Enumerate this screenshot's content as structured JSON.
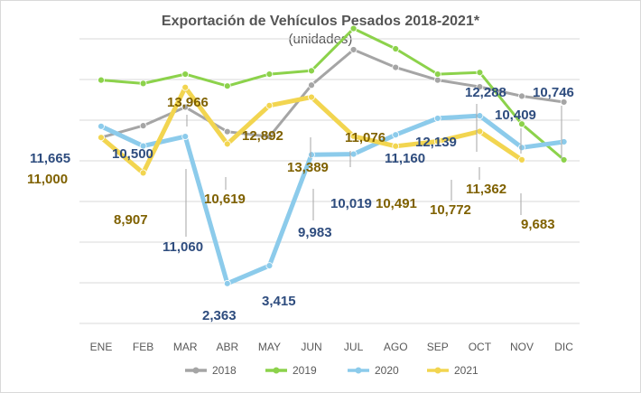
{
  "chart_data": {
    "type": "line",
    "title": "Exportación de Vehículos Pesados 2018-2021*",
    "subtitle": "(unidades)",
    "categories": [
      "ENE",
      "FEB",
      "MAR",
      "ABR",
      "MAY",
      "JUN",
      "JUL",
      "AGO",
      "SEP",
      "OCT",
      "NOV",
      "DIC"
    ],
    "ylim": [
      0,
      17000
    ],
    "grid": true,
    "legend_position": "bottom",
    "series": [
      {
        "name": "2018",
        "color": "#A5A5A5",
        "values": [
          11000,
          11700,
          12800,
          11350,
          11050,
          14100,
          16200,
          15150,
          14400,
          14000,
          13450,
          13100
        ]
      },
      {
        "name": "2019",
        "color": "#8CD24B",
        "values": [
          14400,
          14200,
          14750,
          14050,
          14750,
          14950,
          17450,
          16250,
          14750,
          14850,
          11800,
          9680
        ]
      },
      {
        "name": "2020",
        "color": "#8CCBEB",
        "values": [
          11665,
          10500,
          11060,
          2363,
          3415,
          9983,
          10019,
          11160,
          12139,
          12288,
          10409,
          10746
        ]
      },
      {
        "name": "2021",
        "color": "#F2D550",
        "values": [
          11000,
          8907,
          13966,
          10619,
          12892,
          13389,
          11076,
          10491,
          10772,
          11362,
          9683,
          null
        ]
      }
    ],
    "data_labels": [
      {
        "text": "11,665",
        "series": "2020",
        "index": 0,
        "color": "#2E4C7E"
      },
      {
        "text": "11,000",
        "series": "2021",
        "index": 0,
        "color": "#7F6100"
      },
      {
        "text": "10,500",
        "series": "2020",
        "index": 1,
        "color": "#2E4C7E"
      },
      {
        "text": "8,907",
        "series": "2021",
        "index": 1,
        "color": "#7F6100"
      },
      {
        "text": "13,966",
        "series": "2021",
        "index": 2,
        "color": "#7F6100"
      },
      {
        "text": "11,060",
        "series": "2020",
        "index": 2,
        "color": "#2E4C7E"
      },
      {
        "text": "10,619",
        "series": "2021",
        "index": 3,
        "color": "#7F6100"
      },
      {
        "text": "2,363",
        "series": "2020",
        "index": 3,
        "color": "#2E4C7E"
      },
      {
        "text": "12,892",
        "series": "2021",
        "index": 4,
        "color": "#7F6100"
      },
      {
        "text": "3,415",
        "series": "2020",
        "index": 4,
        "color": "#2E4C7E"
      },
      {
        "text": "13,389",
        "series": "2021",
        "index": 5,
        "color": "#7F6100"
      },
      {
        "text": "9,983",
        "series": "2020",
        "index": 5,
        "color": "#2E4C7E"
      },
      {
        "text": "11,076",
        "series": "2021",
        "index": 6,
        "color": "#7F6100"
      },
      {
        "text": "10,019",
        "series": "2020",
        "index": 6,
        "color": "#2E4C7E"
      },
      {
        "text": "11,160",
        "series": "2020",
        "index": 7,
        "color": "#2E4C7E"
      },
      {
        "text": "10,491",
        "series": "2021",
        "index": 7,
        "color": "#7F6100"
      },
      {
        "text": "12,139",
        "series": "2020",
        "index": 8,
        "color": "#2E4C7E"
      },
      {
        "text": "10,772",
        "series": "2021",
        "index": 8,
        "color": "#7F6100"
      },
      {
        "text": "12,288",
        "series": "2020",
        "index": 9,
        "color": "#2E4C7E"
      },
      {
        "text": "11,362",
        "series": "2021",
        "index": 9,
        "color": "#7F6100"
      },
      {
        "text": "10,409",
        "series": "2020",
        "index": 10,
        "color": "#2E4C7E"
      },
      {
        "text": "9,683",
        "series": "2021",
        "index": 10,
        "color": "#7F6100"
      },
      {
        "text": "10,746",
        "series": "2020",
        "index": 11,
        "color": "#2E4C7E"
      }
    ]
  }
}
